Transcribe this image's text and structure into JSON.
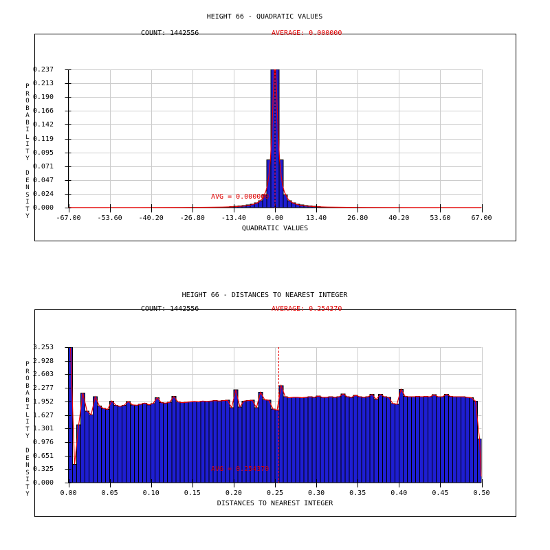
{
  "page": {
    "background": "#ffffff"
  },
  "colors": {
    "bar_fill": "#1e1ed2",
    "bar_edge": "#000000",
    "curve_red": "#ee0000",
    "annotation_red": "#dd0000",
    "grid_gray": "#cccccc",
    "axis_black": "#000000"
  },
  "plots": [
    {
      "title": "HEIGHT 66 - QUADRATIC VALUES",
      "count_label": "COUNT: 1442556",
      "average_label": "AVERAGE: 0.000000",
      "avg_annotation": "AVG = 0.000000",
      "x_axis_label": "QUADRATIC VALUES",
      "y_axis_label": "PROBABILITY DENSITY",
      "x_tick_labels": [
        "-67.00",
        "-53.60",
        "-40.20",
        "-26.80",
        "-13.40",
        "0.00",
        "13.40",
        "26.80",
        "40.20",
        "53.60",
        "67.00"
      ],
      "y_tick_labels": [
        "0.237",
        "0.213",
        "0.190",
        "0.166",
        "0.142",
        "0.119",
        "0.095",
        "0.071",
        "0.047",
        "0.024",
        "0.000"
      ],
      "chart_data": {
        "type": "bar",
        "title": "HEIGHT 66 - QUADRATIC VALUES",
        "xlabel": "QUADRATIC VALUES",
        "ylabel": "PROBABILITY DENSITY",
        "count": 1442556,
        "average": 0.0,
        "xlim": [
          -67,
          67
        ],
        "ylim": [
          0,
          0.237
        ],
        "x_ticks": [
          -67.0,
          -53.6,
          -40.2,
          -26.8,
          -13.4,
          0.0,
          13.4,
          26.8,
          40.2,
          53.6,
          67.0
        ],
        "y_ticks": [
          0.237,
          0.213,
          0.19,
          0.166,
          0.142,
          0.119,
          0.095,
          0.071,
          0.047,
          0.024,
          0.0
        ],
        "grid": true,
        "legend_position": "none",
        "avg_line_x": 0.0,
        "bin_start": -67,
        "bin_width": 1.34,
        "bins": [
          0,
          0,
          0,
          0,
          0,
          0,
          0,
          0,
          0,
          0,
          0,
          0,
          0,
          0,
          0,
          0,
          0,
          0,
          0,
          0,
          0,
          0,
          0,
          0,
          0,
          0,
          0,
          0,
          0,
          0,
          0,
          0,
          0,
          0,
          0,
          0,
          0,
          0,
          0.0012,
          0.0018,
          0.0025,
          0.003,
          0.0035,
          0.0045,
          0.006,
          0.008,
          0.012,
          0.022,
          0.082,
          0.237,
          0.237,
          0.082,
          0.022,
          0.012,
          0.008,
          0.006,
          0.0045,
          0.0035,
          0.003,
          0.0025,
          0.0018,
          0.0012,
          0,
          0,
          0,
          0,
          0,
          0,
          0,
          0,
          0,
          0,
          0,
          0,
          0,
          0,
          0,
          0,
          0,
          0,
          0,
          0,
          0,
          0,
          0,
          0,
          0,
          0,
          0,
          0,
          0,
          0,
          0,
          0,
          0,
          0,
          0,
          0,
          0,
          0
        ],
        "fit_curve_points": [
          [
            -67,
            0.0001
          ],
          [
            -45,
            0.00014
          ],
          [
            -30,
            0.0003
          ],
          [
            -22,
            0.00057
          ],
          [
            -17,
            0.00095
          ],
          [
            -13,
            0.0016
          ],
          [
            -10,
            0.0027
          ],
          [
            -8,
            0.0042
          ],
          [
            -6,
            0.0074
          ],
          [
            -5,
            0.0106
          ],
          [
            -4,
            0.0161
          ],
          [
            -3,
            0.0273
          ],
          [
            -2.5,
            0.0375
          ],
          [
            -2,
            0.054
          ],
          [
            -1.5,
            0.0822
          ],
          [
            -1,
            0.1311
          ],
          [
            -0.5,
            0.2038
          ],
          [
            0,
            0.26
          ],
          [
            0.5,
            0.2038
          ],
          [
            1,
            0.1311
          ],
          [
            1.5,
            0.0822
          ],
          [
            2,
            0.054
          ],
          [
            2.5,
            0.0375
          ],
          [
            3,
            0.0273
          ],
          [
            4,
            0.0161
          ],
          [
            5,
            0.0106
          ],
          [
            6,
            0.0074
          ],
          [
            8,
            0.0042
          ],
          [
            10,
            0.0027
          ],
          [
            13,
            0.0016
          ],
          [
            17,
            0.00095
          ],
          [
            22,
            0.00057
          ],
          [
            30,
            0.0003
          ],
          [
            45,
            0.00014
          ],
          [
            67,
            0.0001
          ]
        ]
      }
    },
    {
      "title": "HEIGHT 66 - DISTANCES TO NEAREST INTEGER",
      "count_label": "COUNT: 1442556",
      "average_label": "AVERAGE: 0.254370",
      "avg_annotation": "AVG = 0.254370",
      "x_axis_label": "DISTANCES TO NEAREST INTEGER",
      "y_axis_label": "PROBABILITY DENSITY",
      "x_tick_labels": [
        "0.00",
        "0.05",
        "0.10",
        "0.15",
        "0.20",
        "0.25",
        "0.30",
        "0.35",
        "0.40",
        "0.45",
        "0.50"
      ],
      "y_tick_labels": [
        "3.253",
        "2.928",
        "2.603",
        "2.277",
        "1.952",
        "1.627",
        "1.301",
        "0.976",
        "0.651",
        "0.325",
        "0.000"
      ],
      "chart_data": {
        "type": "bar",
        "title": "HEIGHT 66 - DISTANCES TO NEAREST INTEGER",
        "xlabel": "DISTANCES TO NEAREST INTEGER",
        "ylabel": "PROBABILITY DENSITY",
        "count": 1442556,
        "average": 0.25437,
        "xlim": [
          0,
          0.5
        ],
        "ylim": [
          0,
          3.253
        ],
        "x_ticks": [
          0.0,
          0.05,
          0.1,
          0.15,
          0.2,
          0.25,
          0.3,
          0.35,
          0.4,
          0.45,
          0.5
        ],
        "y_ticks": [
          3.253,
          2.928,
          2.603,
          2.277,
          1.952,
          1.627,
          1.301,
          0.976,
          0.651,
          0.325,
          0.0
        ],
        "grid": true,
        "legend_position": "none",
        "avg_line_x": 0.25437,
        "bin_start": 0,
        "bin_width": 0.005,
        "bins": [
          3.253,
          0.44,
          1.39,
          2.15,
          1.72,
          1.63,
          2.06,
          1.84,
          1.78,
          1.76,
          1.96,
          1.86,
          1.83,
          1.86,
          1.95,
          1.87,
          1.86,
          1.88,
          1.91,
          1.87,
          1.9,
          2.04,
          1.92,
          1.91,
          1.93,
          2.07,
          1.94,
          1.92,
          1.93,
          1.94,
          1.95,
          1.94,
          1.96,
          1.95,
          1.96,
          1.97,
          1.96,
          1.97,
          1.98,
          1.8,
          2.23,
          1.82,
          1.96,
          1.97,
          1.98,
          1.8,
          2.17,
          1.99,
          1.98,
          1.77,
          1.74,
          2.33,
          2.06,
          2.04,
          2.05,
          2.05,
          2.04,
          2.05,
          2.06,
          2.05,
          2.08,
          2.05,
          2.05,
          2.06,
          2.05,
          2.06,
          2.13,
          2.06,
          2.05,
          2.1,
          2.06,
          2.05,
          2.06,
          2.12,
          2.0,
          2.12,
          2.06,
          2.05,
          1.9,
          1.88,
          2.24,
          2.07,
          2.06,
          2.06,
          2.07,
          2.06,
          2.07,
          2.06,
          2.11,
          2.06,
          2.06,
          2.12,
          2.07,
          2.06,
          2.06,
          2.06,
          2.05,
          2.04,
          1.96,
          1.05
        ],
        "curve_follows_bins": true,
        "curve_tail_points": [
          [
            0.4995,
            0.15
          ]
        ]
      }
    }
  ]
}
